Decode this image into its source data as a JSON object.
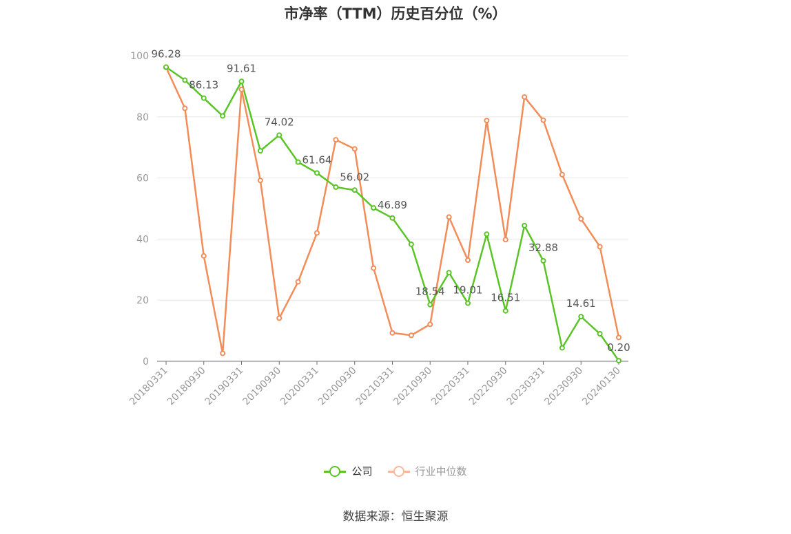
{
  "title": "市净率（TTM）历史百分位（%）",
  "source": "数据来源：恒生聚源",
  "colors": {
    "company": "#5ac427",
    "industry": "#f28c58",
    "industry_legend": "#f7b79a",
    "axis": "#888888",
    "grid": "#e6e6e6"
  },
  "chart_data": {
    "type": "line",
    "title": "市净率（TTM）历史百分位（%）",
    "ylim": [
      0,
      100
    ],
    "yticks": [
      0,
      20,
      40,
      60,
      80,
      100
    ],
    "grid": true,
    "legend_position": "bottom",
    "xtick_labels": [
      "20180331",
      "20180930",
      "20190331",
      "20190930",
      "20200331",
      "20200930",
      "20210331",
      "20210930",
      "20220331",
      "20220930",
      "20230331",
      "20230930",
      "20240130"
    ],
    "x_count": 25,
    "series": [
      {
        "name": "公司",
        "values": [
          96.28,
          92.0,
          86.13,
          80.3,
          91.61,
          68.9,
          74.02,
          65.2,
          61.64,
          57.0,
          56.02,
          50.2,
          46.89,
          38.3,
          18.54,
          29.0,
          19.01,
          41.6,
          16.51,
          44.4,
          32.88,
          4.4,
          14.61,
          9.0,
          0.2
        ],
        "labels": [
          "96.28",
          "",
          "86.13",
          "",
          "91.61",
          "",
          "74.02",
          "",
          "61.64",
          "",
          "56.02",
          "",
          "46.89",
          "",
          "18.54",
          "",
          "19.01",
          "",
          "16.51",
          "",
          "32.88",
          "",
          "14.61",
          "",
          "0.20"
        ]
      },
      {
        "name": "行业中位数",
        "values": [
          96.2,
          82.8,
          34.5,
          2.6,
          89.0,
          59.2,
          14.1,
          26.0,
          42.0,
          72.5,
          69.5,
          30.5,
          9.3,
          8.5,
          12.1,
          47.2,
          33.1,
          78.8,
          39.8,
          86.5,
          78.9,
          61.1,
          46.6,
          37.5,
          7.8
        ]
      }
    ]
  }
}
